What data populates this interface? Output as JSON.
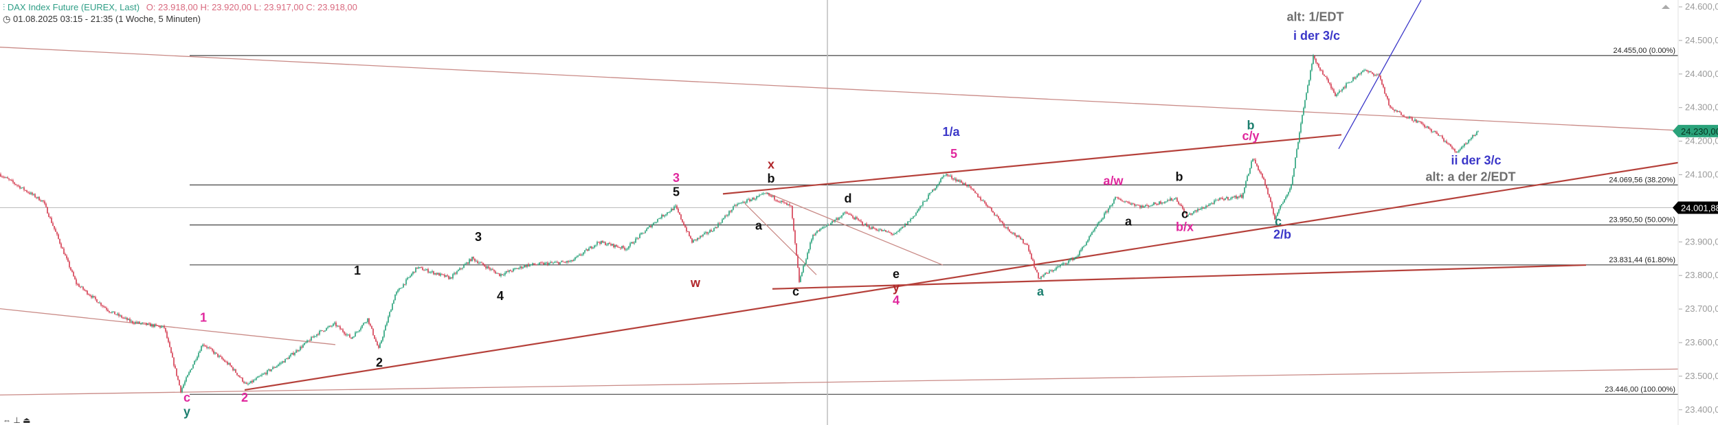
{
  "header": {
    "icon": "candlestick-icon",
    "symbol": "DAX Index Future (EUREX, Last)",
    "ohlc": "O: 23.918,00  H: 23.920,00  L: 23.917,00  C: 23.918,00",
    "clock_icon": "clock-icon",
    "range": "01.08.2025 03:15 - 21:35  (1 Woche, 5 Minuten)"
  },
  "colors": {
    "up": "#22a077",
    "down": "#d4384c",
    "trend": "#b5403a",
    "trend_thin": "#c98a86",
    "blue": "#3a36c8",
    "magenta": "#e0279d",
    "teal": "#1b7e6e",
    "darkred": "#b0262a",
    "black": "#111111",
    "gray": "#6e6e6e",
    "last_price": "#2aa27a"
  },
  "chart_data": {
    "type": "candlestick",
    "title": "",
    "ylim": [
      23370,
      24630
    ],
    "y_ticks": [
      {
        "value": 24600,
        "label": "24.600,00"
      },
      {
        "value": 24500,
        "label": "24.500,00"
      },
      {
        "value": 24400,
        "label": "24.400,00"
      },
      {
        "value": 24300,
        "label": "24.300,00"
      },
      {
        "value": 24200,
        "label": "24.200,00"
      },
      {
        "value": 24100,
        "label": "24.100,00"
      },
      {
        "value": 23900,
        "label": "23.900,00"
      },
      {
        "value": 23800,
        "label": "23.800,00"
      },
      {
        "value": 23700,
        "label": "23.700,00"
      },
      {
        "value": 23600,
        "label": "23.600,00"
      },
      {
        "value": 23500,
        "label": "23.500,00"
      },
      {
        "value": 23400,
        "label": "23.400,00"
      }
    ],
    "bar_range": [
      0,
      1221
    ],
    "price_path": [
      [
        0,
        24102
      ],
      [
        32,
        24020
      ],
      [
        56,
        23776
      ],
      [
        80,
        23694
      ],
      [
        96,
        23662
      ],
      [
        120,
        23645
      ],
      [
        132,
        23457
      ],
      [
        148,
        23597
      ],
      [
        168,
        23531
      ],
      [
        180,
        23473
      ],
      [
        208,
        23548
      ],
      [
        232,
        23629
      ],
      [
        244,
        23655
      ],
      [
        256,
        23613
      ],
      [
        268,
        23671
      ],
      [
        276,
        23580
      ],
      [
        288,
        23743
      ],
      [
        304,
        23824
      ],
      [
        328,
        23792
      ],
      [
        344,
        23851
      ],
      [
        364,
        23802
      ],
      [
        384,
        23831
      ],
      [
        416,
        23841
      ],
      [
        436,
        23900
      ],
      [
        456,
        23880
      ],
      [
        480,
        23971
      ],
      [
        492,
        24004
      ],
      [
        504,
        23900
      ],
      [
        520,
        23939
      ],
      [
        536,
        24010
      ],
      [
        558,
        24043
      ],
      [
        576,
        24004
      ],
      [
        582,
        23782
      ],
      [
        592,
        23922
      ],
      [
        616,
        23987
      ],
      [
        632,
        23945
      ],
      [
        652,
        23922
      ],
      [
        664,
        23971
      ],
      [
        688,
        24102
      ],
      [
        704,
        24069
      ],
      [
        720,
        24004
      ],
      [
        732,
        23945
      ],
      [
        748,
        23890
      ],
      [
        756,
        23792
      ],
      [
        784,
        23857
      ],
      [
        812,
        24030
      ],
      [
        832,
        24004
      ],
      [
        856,
        24030
      ],
      [
        864,
        23978
      ],
      [
        888,
        24027
      ],
      [
        904,
        24036
      ],
      [
        912,
        24150
      ],
      [
        920,
        24085
      ],
      [
        928,
        23971
      ],
      [
        940,
        24069
      ],
      [
        948,
        24280
      ],
      [
        956,
        24450
      ],
      [
        964,
        24395
      ],
      [
        972,
        24339
      ],
      [
        992,
        24411
      ],
      [
        1004,
        24395
      ],
      [
        1012,
        24297
      ],
      [
        1032,
        24258
      ],
      [
        1048,
        24216
      ],
      [
        1060,
        24167
      ],
      [
        1076,
        24230
      ]
    ],
    "fib_levels": [
      {
        "price": 24455.0,
        "label": "24.455,00 (0.00%)"
      },
      {
        "price": 24069.56,
        "label": "24.069,56 (38.20%)"
      },
      {
        "price": 23950.5,
        "label": "23.950,50 (50.00%)"
      },
      {
        "price": 23831.44,
        "label": "23.831,44 (61.80%)"
      },
      {
        "price": 23446.0,
        "label": "23.446,00 (100.00%)"
      }
    ],
    "fib_start_bar": 138,
    "last_price": {
      "value": 24230,
      "label": "24.230,00"
    },
    "crosshair_price": {
      "value": 24001.88,
      "label": "24.001,88"
    },
    "vertical_marker_bar": 602,
    "trendlines": [
      {
        "style": "thin",
        "from": [
          0,
          24480
        ],
        "to": [
          1221,
          24232
        ]
      },
      {
        "style": "thin",
        "from": [
          0,
          23701
        ],
        "to": [
          244,
          23594
        ]
      },
      {
        "style": "thin",
        "from": [
          0,
          23444
        ],
        "to": [
          1232,
          23522
        ]
      },
      {
        "style": "thick",
        "from": [
          178,
          23459
        ],
        "to": [
          1221,
          24136
        ]
      },
      {
        "style": "thick",
        "from": [
          526,
          24043
        ],
        "to": [
          976,
          24219
        ]
      },
      {
        "style": "thick",
        "from": [
          562,
          23760
        ],
        "to": [
          1154,
          23831
        ]
      },
      {
        "style": "thin",
        "from": [
          558,
          24046
        ],
        "to": [
          686,
          23831
        ]
      },
      {
        "style": "thin",
        "from": [
          542,
          24014
        ],
        "to": [
          594,
          23802
        ]
      },
      {
        "style": "blue",
        "from": [
          974,
          24177
        ],
        "to": [
          1034,
          24620
        ]
      }
    ],
    "annotations": [
      {
        "text": "1",
        "bar": 148,
        "price": 23662,
        "color": "magenta"
      },
      {
        "text": "c",
        "bar": 136,
        "price": 23424,
        "color": "magenta"
      },
      {
        "text": "y",
        "bar": 136,
        "price": 23382,
        "color": "teal"
      },
      {
        "text": "2",
        "bar": 178,
        "price": 23424,
        "color": "magenta"
      },
      {
        "text": "1",
        "bar": 260,
        "price": 23802,
        "color": "black"
      },
      {
        "text": "2",
        "bar": 276,
        "price": 23528,
        "color": "black"
      },
      {
        "text": "3",
        "bar": 348,
        "price": 23903,
        "color": "black"
      },
      {
        "text": "4",
        "bar": 364,
        "price": 23727,
        "color": "black"
      },
      {
        "text": "3",
        "bar": 492,
        "price": 24079,
        "color": "magenta"
      },
      {
        "text": "5",
        "bar": 492,
        "price": 24037,
        "color": "black"
      },
      {
        "text": "w",
        "bar": 506,
        "price": 23766,
        "color": "darkred"
      },
      {
        "text": "x",
        "bar": 561,
        "price": 24118,
        "color": "darkred"
      },
      {
        "text": "b",
        "bar": 561,
        "price": 24076,
        "color": "black"
      },
      {
        "text": "a",
        "bar": 552,
        "price": 23936,
        "color": "black"
      },
      {
        "text": "c",
        "bar": 579,
        "price": 23740,
        "color": "black"
      },
      {
        "text": "d",
        "bar": 617,
        "price": 24017,
        "color": "black"
      },
      {
        "text": "e",
        "bar": 652,
        "price": 23792,
        "color": "black"
      },
      {
        "text": "y",
        "bar": 652,
        "price": 23752,
        "color": "darkred"
      },
      {
        "text": "4",
        "bar": 652,
        "price": 23714,
        "color": "magenta"
      },
      {
        "text": "1/a",
        "bar": 692,
        "price": 24216,
        "color": "blue"
      },
      {
        "text": "5",
        "bar": 694,
        "price": 24150,
        "color": "magenta"
      },
      {
        "text": "a",
        "bar": 757,
        "price": 23740,
        "color": "teal"
      },
      {
        "text": "a/w",
        "bar": 810,
        "price": 24069,
        "color": "magenta"
      },
      {
        "text": "a",
        "bar": 821,
        "price": 23949,
        "color": "black"
      },
      {
        "text": "b",
        "bar": 858,
        "price": 24082,
        "color": "black"
      },
      {
        "text": "c",
        "bar": 862,
        "price": 23971,
        "color": "black"
      },
      {
        "text": "b/x",
        "bar": 862,
        "price": 23932,
        "color": "magenta"
      },
      {
        "text": "b",
        "bar": 910,
        "price": 24235,
        "color": "teal"
      },
      {
        "text": "c/y",
        "bar": 910,
        "price": 24203,
        "color": "magenta"
      },
      {
        "text": "c",
        "bar": 930,
        "price": 23949,
        "color": "teal"
      },
      {
        "text": "2/b",
        "bar": 933,
        "price": 23910,
        "color": "blue"
      },
      {
        "text": "alt: 1/EDT",
        "bar": 957,
        "price": 24558,
        "color": "gray"
      },
      {
        "text": "i der 3/c",
        "bar": 958,
        "price": 24502,
        "color": "blue"
      },
      {
        "text": "ii der 3/c",
        "bar": 1074,
        "price": 24131,
        "color": "blue"
      },
      {
        "text": "alt: a der 2/EDT",
        "bar": 1070,
        "price": 24082,
        "color": "gray"
      }
    ]
  },
  "toolbar": {
    "icons": [
      "swap-icon",
      "anchor-icon",
      "eject-icon"
    ]
  }
}
